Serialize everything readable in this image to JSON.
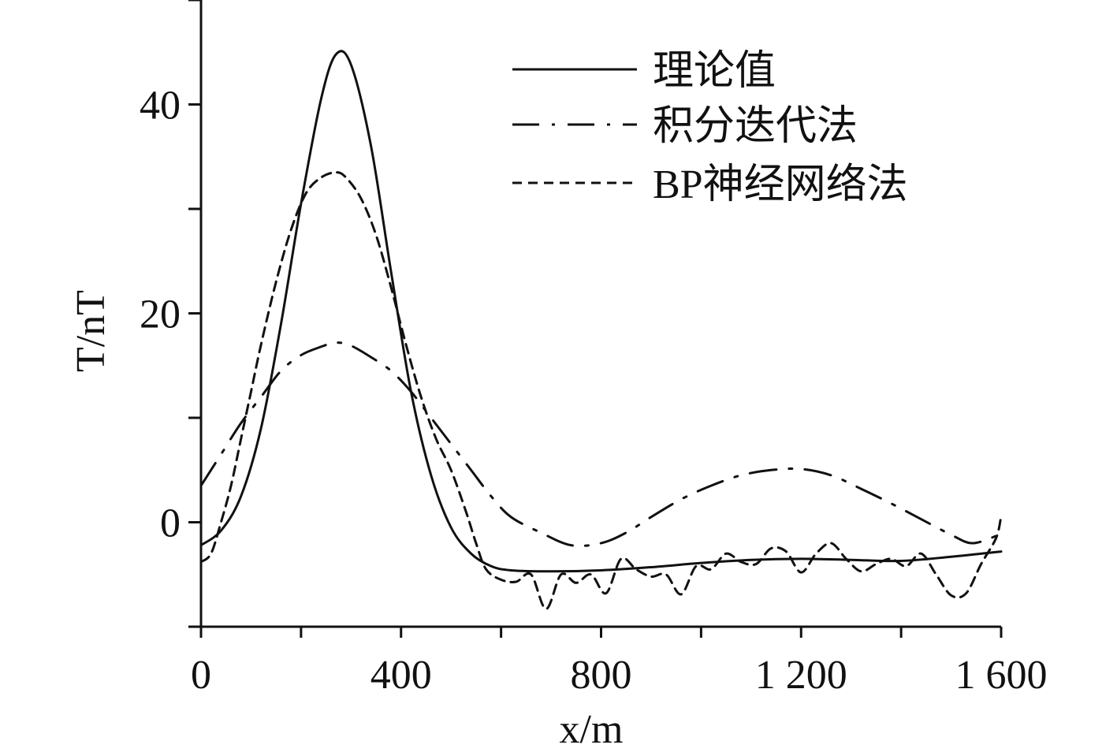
{
  "chart_data": {
    "type": "line",
    "title": "",
    "xlabel": "x/m",
    "ylabel": "T/nT",
    "xlim": [
      0,
      1600
    ],
    "ylim": [
      -10,
      50
    ],
    "x_ticks": [
      0,
      400,
      800,
      1200,
      1600
    ],
    "x_tick_labels": [
      "0",
      "400",
      "800",
      "1 200",
      "1 600"
    ],
    "x_minor_ticks": [
      200,
      600,
      1000,
      1400
    ],
    "y_ticks": [
      0,
      20,
      40
    ],
    "y_tick_labels": [
      "0",
      "20",
      "40"
    ],
    "y_minor_ticks": [
      10,
      30,
      -10,
      50
    ],
    "grid": false,
    "legend_position": "top-right",
    "series": [
      {
        "name": "理论值",
        "style": "solid",
        "color": "#111111",
        "x": [
          0,
          40,
          80,
          120,
          160,
          200,
          240,
          270,
          300,
          340,
          380,
          420,
          460,
          500,
          540,
          580,
          620,
          700,
          800,
          900,
          1000,
          1100,
          1200,
          1300,
          1400,
          1500,
          1600
        ],
        "y": [
          -2.2,
          -0.8,
          2.5,
          9.0,
          19.0,
          30.5,
          40.5,
          44.8,
          43.8,
          36.0,
          24.0,
          12.5,
          4.5,
          -0.5,
          -3.0,
          -4.2,
          -4.6,
          -4.7,
          -4.6,
          -4.3,
          -3.9,
          -3.6,
          -3.5,
          -3.6,
          -3.7,
          -3.3,
          -2.8
        ]
      },
      {
        "name": "积分迭代法",
        "style": "dash-dot",
        "color": "#111111",
        "x": [
          0,
          40,
          80,
          120,
          160,
          200,
          240,
          270,
          300,
          340,
          380,
          420,
          460,
          500,
          540,
          580,
          620,
          680,
          740,
          800,
          850,
          900,
          960,
          1020,
          1080,
          1140,
          1200,
          1260,
          1320,
          1380,
          1440,
          1500,
          1540,
          1580,
          1600
        ],
        "y": [
          3.5,
          6.5,
          9.5,
          12.0,
          14.5,
          16.0,
          16.8,
          17.2,
          16.9,
          15.8,
          14.5,
          12.5,
          10.0,
          7.5,
          5.0,
          2.5,
          0.5,
          -1.0,
          -2.2,
          -2.0,
          -1.0,
          0.5,
          2.2,
          3.5,
          4.5,
          5.0,
          5.1,
          4.5,
          3.2,
          1.8,
          0.3,
          -1.2,
          -2.0,
          -1.5,
          -1.0
        ]
      },
      {
        "name": "BP神经网络法",
        "style": "dashed",
        "color": "#111111",
        "x": [
          0,
          20,
          40,
          60,
          80,
          100,
          120,
          150,
          180,
          210,
          240,
          270,
          290,
          320,
          350,
          380,
          410,
          440,
          470,
          500,
          530,
          550,
          570,
          600,
          630,
          660,
          690,
          720,
          750,
          780,
          810,
          840,
          870,
          900,
          930,
          960,
          990,
          1020,
          1050,
          1080,
          1110,
          1140,
          1170,
          1200,
          1230,
          1260,
          1290,
          1320,
          1350,
          1380,
          1410,
          1440,
          1470,
          1500,
          1530,
          1560,
          1590,
          1600
        ],
        "y": [
          -3.8,
          -3.0,
          0.0,
          3.5,
          8.0,
          12.5,
          17.0,
          23.0,
          28.0,
          31.5,
          33.0,
          33.5,
          33.0,
          31.0,
          27.5,
          22.5,
          17.0,
          12.0,
          8.0,
          5.0,
          1.0,
          -2.0,
          -4.5,
          -5.5,
          -5.7,
          -5.0,
          -8.3,
          -5.0,
          -5.8,
          -5.0,
          -6.8,
          -3.5,
          -4.5,
          -5.2,
          -5.0,
          -6.9,
          -4.2,
          -4.5,
          -3.0,
          -3.8,
          -4.0,
          -2.5,
          -2.8,
          -4.8,
          -3.0,
          -2.0,
          -3.5,
          -4.7,
          -4.0,
          -3.5,
          -4.2,
          -3.0,
          -5.0,
          -7.0,
          -6.8,
          -4.0,
          -1.5,
          0.6
        ]
      }
    ]
  }
}
